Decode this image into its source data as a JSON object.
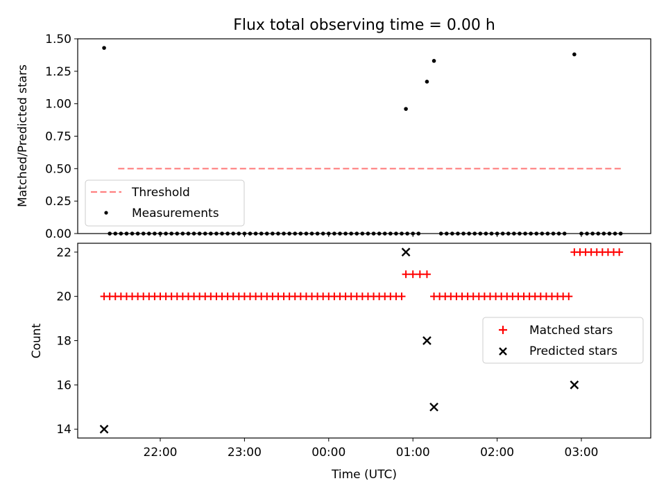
{
  "chart_data": [
    {
      "type": "scatter",
      "title": "Flux total observing time = 0.00 h",
      "xlabel": "",
      "ylabel": "Matched/Predicted stars",
      "ylim": [
        0,
        1.5
      ],
      "yticks": [
        "0.00",
        "0.25",
        "0.50",
        "0.75",
        "1.00",
        "1.25",
        "1.50"
      ],
      "legend_position": "lower-left",
      "threshold": {
        "name": "Threshold",
        "value": 0.5,
        "x_start": "21:30",
        "x_end": "03:30",
        "color": "#ff7f7f"
      },
      "measurements": {
        "name": "Measurements",
        "color": "#000000",
        "points": [
          {
            "t": "21:20",
            "v": 1.43
          },
          {
            "t": "00:55",
            "v": 0.96
          },
          {
            "t": "01:10",
            "v": 1.17
          },
          {
            "t": "01:15",
            "v": 1.33
          },
          {
            "t": "02:55",
            "v": 1.38
          }
        ],
        "zero_points": [
          "21:24",
          "21:28",
          "21:32",
          "21:36",
          "21:40",
          "21:44",
          "21:48",
          "21:52",
          "21:56",
          "22:00",
          "22:04",
          "22:08",
          "22:12",
          "22:16",
          "22:20",
          "22:24",
          "22:28",
          "22:32",
          "22:36",
          "22:40",
          "22:44",
          "22:48",
          "22:52",
          "22:56",
          "23:00",
          "23:04",
          "23:08",
          "23:12",
          "23:16",
          "23:20",
          "23:24",
          "23:28",
          "23:32",
          "23:36",
          "23:40",
          "23:44",
          "23:48",
          "23:52",
          "23:56",
          "00:00",
          "00:04",
          "00:08",
          "00:12",
          "00:16",
          "00:20",
          "00:24",
          "00:28",
          "00:32",
          "00:36",
          "00:40",
          "00:44",
          "00:48",
          "00:52",
          "00:56",
          "01:00",
          "01:04",
          "01:20",
          "01:24",
          "01:28",
          "01:32",
          "01:36",
          "01:40",
          "01:44",
          "01:48",
          "01:52",
          "01:56",
          "02:00",
          "02:04",
          "02:08",
          "02:12",
          "02:16",
          "02:20",
          "02:24",
          "02:28",
          "02:32",
          "02:36",
          "02:40",
          "02:44",
          "02:48",
          "03:00",
          "03:04",
          "03:08",
          "03:12",
          "03:16",
          "03:20",
          "03:24",
          "03:28"
        ]
      }
    },
    {
      "type": "scatter",
      "title": "",
      "xlabel": "Time (UTC)",
      "ylabel": "Count",
      "ylim": [
        13.6,
        22.4
      ],
      "yticks": [
        "14",
        "16",
        "18",
        "20",
        "22"
      ],
      "xticks": [
        "22:00",
        "23:00",
        "00:00",
        "01:00",
        "02:00",
        "03:00"
      ],
      "legend_position": "center-right",
      "series": [
        {
          "name": "Matched stars",
          "marker": "+",
          "color": "#ff0000",
          "points": [
            {
              "t": "21:20",
              "v": 20
            },
            {
              "t": "21:24",
              "v": 20
            },
            {
              "t": "21:28",
              "v": 20
            },
            {
              "t": "21:32",
              "v": 20
            },
            {
              "t": "21:36",
              "v": 20
            },
            {
              "t": "21:40",
              "v": 20
            },
            {
              "t": "21:44",
              "v": 20
            },
            {
              "t": "21:48",
              "v": 20
            },
            {
              "t": "21:52",
              "v": 20
            },
            {
              "t": "21:56",
              "v": 20
            },
            {
              "t": "22:00",
              "v": 20
            },
            {
              "t": "22:04",
              "v": 20
            },
            {
              "t": "22:08",
              "v": 20
            },
            {
              "t": "22:12",
              "v": 20
            },
            {
              "t": "22:16",
              "v": 20
            },
            {
              "t": "22:20",
              "v": 20
            },
            {
              "t": "22:24",
              "v": 20
            },
            {
              "t": "22:28",
              "v": 20
            },
            {
              "t": "22:32",
              "v": 20
            },
            {
              "t": "22:36",
              "v": 20
            },
            {
              "t": "22:40",
              "v": 20
            },
            {
              "t": "22:44",
              "v": 20
            },
            {
              "t": "22:48",
              "v": 20
            },
            {
              "t": "22:52",
              "v": 20
            },
            {
              "t": "22:56",
              "v": 20
            },
            {
              "t": "23:00",
              "v": 20
            },
            {
              "t": "23:04",
              "v": 20
            },
            {
              "t": "23:08",
              "v": 20
            },
            {
              "t": "23:12",
              "v": 20
            },
            {
              "t": "23:16",
              "v": 20
            },
            {
              "t": "23:20",
              "v": 20
            },
            {
              "t": "23:24",
              "v": 20
            },
            {
              "t": "23:28",
              "v": 20
            },
            {
              "t": "23:32",
              "v": 20
            },
            {
              "t": "23:36",
              "v": 20
            },
            {
              "t": "23:40",
              "v": 20
            },
            {
              "t": "23:44",
              "v": 20
            },
            {
              "t": "23:48",
              "v": 20
            },
            {
              "t": "23:52",
              "v": 20
            },
            {
              "t": "23:56",
              "v": 20
            },
            {
              "t": "00:00",
              "v": 20
            },
            {
              "t": "00:04",
              "v": 20
            },
            {
              "t": "00:08",
              "v": 20
            },
            {
              "t": "00:12",
              "v": 20
            },
            {
              "t": "00:16",
              "v": 20
            },
            {
              "t": "00:20",
              "v": 20
            },
            {
              "t": "00:24",
              "v": 20
            },
            {
              "t": "00:28",
              "v": 20
            },
            {
              "t": "00:32",
              "v": 20
            },
            {
              "t": "00:36",
              "v": 20
            },
            {
              "t": "00:40",
              "v": 20
            },
            {
              "t": "00:44",
              "v": 20
            },
            {
              "t": "00:48",
              "v": 20
            },
            {
              "t": "00:52",
              "v": 20
            },
            {
              "t": "00:55",
              "v": 21
            },
            {
              "t": "01:00",
              "v": 21
            },
            {
              "t": "01:05",
              "v": 21
            },
            {
              "t": "01:10",
              "v": 21
            },
            {
              "t": "01:15",
              "v": 20
            },
            {
              "t": "01:19",
              "v": 20
            },
            {
              "t": "01:23",
              "v": 20
            },
            {
              "t": "01:27",
              "v": 20
            },
            {
              "t": "01:31",
              "v": 20
            },
            {
              "t": "01:35",
              "v": 20
            },
            {
              "t": "01:39",
              "v": 20
            },
            {
              "t": "01:43",
              "v": 20
            },
            {
              "t": "01:47",
              "v": 20
            },
            {
              "t": "01:51",
              "v": 20
            },
            {
              "t": "01:55",
              "v": 20
            },
            {
              "t": "01:59",
              "v": 20
            },
            {
              "t": "02:03",
              "v": 20
            },
            {
              "t": "02:07",
              "v": 20
            },
            {
              "t": "02:11",
              "v": 20
            },
            {
              "t": "02:15",
              "v": 20
            },
            {
              "t": "02:19",
              "v": 20
            },
            {
              "t": "02:23",
              "v": 20
            },
            {
              "t": "02:27",
              "v": 20
            },
            {
              "t": "02:31",
              "v": 20
            },
            {
              "t": "02:35",
              "v": 20
            },
            {
              "t": "02:39",
              "v": 20
            },
            {
              "t": "02:43",
              "v": 20
            },
            {
              "t": "02:47",
              "v": 20
            },
            {
              "t": "02:51",
              "v": 20
            },
            {
              "t": "02:55",
              "v": 22
            },
            {
              "t": "02:59",
              "v": 22
            },
            {
              "t": "03:03",
              "v": 22
            },
            {
              "t": "03:07",
              "v": 22
            },
            {
              "t": "03:11",
              "v": 22
            },
            {
              "t": "03:15",
              "v": 22
            },
            {
              "t": "03:19",
              "v": 22
            },
            {
              "t": "03:23",
              "v": 22
            },
            {
              "t": "03:27",
              "v": 22
            }
          ]
        },
        {
          "name": "Predicted stars",
          "marker": "x",
          "color": "#000000",
          "points": [
            {
              "t": "21:20",
              "v": 14
            },
            {
              "t": "00:55",
              "v": 22
            },
            {
              "t": "01:10",
              "v": 18
            },
            {
              "t": "01:15",
              "v": 15
            },
            {
              "t": "02:55",
              "v": 16
            }
          ]
        }
      ]
    }
  ]
}
